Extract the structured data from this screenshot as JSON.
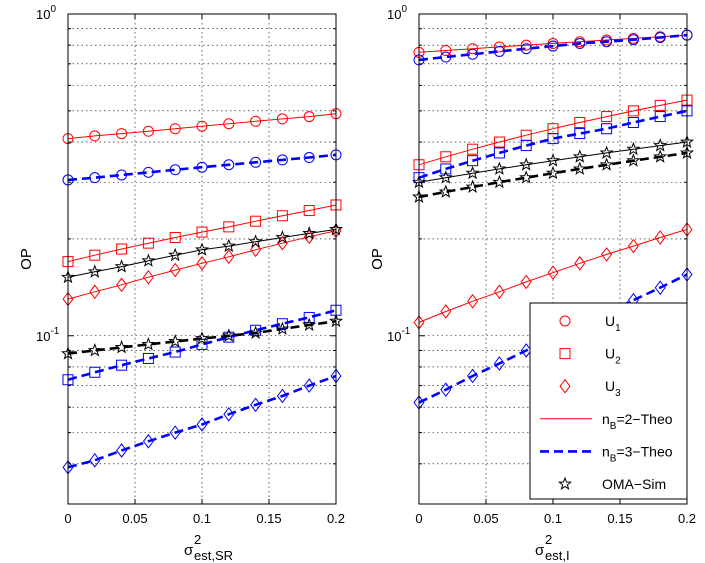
{
  "chart_data": [
    {
      "type": "line",
      "ylabel": "OP",
      "xlabel": {
        "base": "σ",
        "sup": "2",
        "sub": "est,SR"
      },
      "xlim": [
        0,
        0.2
      ],
      "ylim": [
        0.03,
        1
      ],
      "yscale": "log",
      "grid": true,
      "xticks": [
        0,
        0.05,
        0.1,
        0.15,
        0.2
      ],
      "xtick_labels": [
        "0",
        "0.05",
        "0.1",
        "0.15",
        "0.2"
      ],
      "ytick_labels": [
        {
          "value": 1,
          "base": "10",
          "exp": "0"
        },
        {
          "value": 0.1,
          "base": "10",
          "exp": "-1"
        }
      ],
      "x": [
        0,
        0.02,
        0.04,
        0.06,
        0.08,
        0.1,
        0.12,
        0.14,
        0.16,
        0.18,
        0.2
      ],
      "series": [
        {
          "user": "U1",
          "scheme": "nB=2",
          "color": "#ff0000",
          "dash": "solid",
          "marker": "circle",
          "values": [
            0.41,
            0.418,
            0.425,
            0.432,
            0.44,
            0.448,
            0.456,
            0.464,
            0.472,
            0.48,
            0.49
          ]
        },
        {
          "user": "U1",
          "scheme": "nB=3",
          "color": "#0000ff",
          "dash": "dash",
          "marker": "circle",
          "values": [
            0.305,
            0.31,
            0.316,
            0.322,
            0.328,
            0.334,
            0.34,
            0.346,
            0.352,
            0.358,
            0.365
          ]
        },
        {
          "user": "U2",
          "scheme": "nB=2",
          "color": "#ff0000",
          "dash": "solid",
          "marker": "square",
          "values": [
            0.17,
            0.178,
            0.186,
            0.194,
            0.202,
            0.21,
            0.218,
            0.227,
            0.236,
            0.245,
            0.255
          ]
        },
        {
          "user": "U2",
          "scheme": "nB=3",
          "color": "#0000ff",
          "dash": "dash",
          "marker": "square",
          "values": [
            0.073,
            0.077,
            0.081,
            0.085,
            0.089,
            0.094,
            0.099,
            0.104,
            0.109,
            0.114,
            0.12
          ]
        },
        {
          "user": "U3",
          "scheme": "nB=2",
          "color": "#ff0000",
          "dash": "solid",
          "marker": "diamond",
          "values": [
            0.13,
            0.137,
            0.144,
            0.152,
            0.16,
            0.168,
            0.176,
            0.185,
            0.194,
            0.203,
            0.212
          ]
        },
        {
          "user": "U3",
          "scheme": "nB=3",
          "color": "#0000ff",
          "dash": "dash",
          "marker": "diamond",
          "values": [
            0.039,
            0.041,
            0.044,
            0.047,
            0.05,
            0.053,
            0.057,
            0.061,
            0.065,
            0.07,
            0.075
          ]
        },
        {
          "user": "OMA",
          "scheme": "OMA-Sim, U_f",
          "color": "#000000",
          "dash": "solid",
          "marker": "star",
          "values": [
            0.152,
            0.158,
            0.164,
            0.171,
            0.178,
            0.185,
            0.19,
            0.196,
            0.202,
            0.208,
            0.214
          ]
        },
        {
          "user": "OMA",
          "scheme": "OMA-Sim, U_n",
          "color": "#000000",
          "dash": "dash",
          "marker": "star",
          "values": [
            0.088,
            0.09,
            0.092,
            0.094,
            0.096,
            0.098,
            0.1,
            0.102,
            0.105,
            0.108,
            0.111
          ]
        }
      ]
    },
    {
      "type": "line",
      "ylabel": "OP",
      "xlabel": {
        "base": "σ",
        "sup": "2",
        "sub": "est,I"
      },
      "xlim": [
        0,
        0.2
      ],
      "ylim": [
        0.03,
        1
      ],
      "yscale": "log",
      "grid": true,
      "xticks": [
        0,
        0.05,
        0.1,
        0.15,
        0.2
      ],
      "xtick_labels": [
        "0",
        "0.05",
        "0.1",
        "0.15",
        "0.2"
      ],
      "ytick_labels": [
        {
          "value": 1,
          "base": "10",
          "exp": "0"
        },
        {
          "value": 0.1,
          "base": "10",
          "exp": "-1"
        }
      ],
      "x": [
        0,
        0.02,
        0.04,
        0.06,
        0.08,
        0.1,
        0.12,
        0.14,
        0.16,
        0.18,
        0.2
      ],
      "series": [
        {
          "user": "U1",
          "scheme": "nB=2",
          "color": "#ff0000",
          "dash": "solid",
          "marker": "circle",
          "values": [
            0.76,
            0.77,
            0.78,
            0.79,
            0.8,
            0.81,
            0.82,
            0.83,
            0.84,
            0.85,
            0.86
          ]
        },
        {
          "user": "U1",
          "scheme": "nB=3",
          "color": "#0000ff",
          "dash": "dash",
          "marker": "circle",
          "values": [
            0.72,
            0.735,
            0.75,
            0.765,
            0.78,
            0.795,
            0.81,
            0.82,
            0.832,
            0.845,
            0.86
          ]
        },
        {
          "user": "U2",
          "scheme": "nB=2",
          "color": "#ff0000",
          "dash": "solid",
          "marker": "square",
          "values": [
            0.34,
            0.36,
            0.38,
            0.4,
            0.42,
            0.44,
            0.46,
            0.48,
            0.5,
            0.52,
            0.54
          ]
        },
        {
          "user": "U2",
          "scheme": "nB=3",
          "color": "#0000ff",
          "dash": "dash",
          "marker": "square",
          "values": [
            0.31,
            0.33,
            0.35,
            0.37,
            0.39,
            0.41,
            0.425,
            0.44,
            0.46,
            0.48,
            0.5
          ]
        },
        {
          "user": "U3",
          "scheme": "nB=2",
          "color": "#ff0000",
          "dash": "solid",
          "marker": "diamond",
          "values": [
            0.11,
            0.119,
            0.128,
            0.137,
            0.147,
            0.157,
            0.168,
            0.179,
            0.19,
            0.202,
            0.214
          ]
        },
        {
          "user": "U3",
          "scheme": "nB=3",
          "color": "#0000ff",
          "dash": "dash",
          "marker": "diamond",
          "values": [
            0.062,
            0.068,
            0.075,
            0.082,
            0.09,
            0.099,
            0.108,
            0.118,
            0.129,
            0.141,
            0.155
          ]
        },
        {
          "user": "OMA",
          "scheme": "OMA-Sim, U_f",
          "color": "#000000",
          "dash": "solid",
          "marker": "star",
          "values": [
            0.3,
            0.31,
            0.32,
            0.33,
            0.34,
            0.35,
            0.36,
            0.37,
            0.38,
            0.39,
            0.4
          ]
        },
        {
          "user": "OMA",
          "scheme": "OMA-Sim, U_n",
          "color": "#000000",
          "dash": "dash",
          "marker": "star",
          "values": [
            0.27,
            0.28,
            0.29,
            0.3,
            0.31,
            0.32,
            0.33,
            0.34,
            0.35,
            0.36,
            0.37
          ]
        }
      ]
    }
  ],
  "legend": {
    "placement": "bottom-right of right panel",
    "entries": [
      {
        "label_base": "U",
        "label_sub": "1",
        "label_after": "",
        "marker": "circle",
        "color": "#ff0000",
        "dash": "none"
      },
      {
        "label_base": "U",
        "label_sub": "2",
        "label_after": "",
        "marker": "square",
        "color": "#ff0000",
        "dash": "none"
      },
      {
        "label_base": "U",
        "label_sub": "3",
        "label_after": "",
        "marker": "diamond",
        "color": "#ff0000",
        "dash": "none"
      },
      {
        "label_base": "n",
        "label_sub": "B",
        "label_after": "=2−Theo",
        "marker": "none",
        "color": "#ff0000",
        "dash": "solid"
      },
      {
        "label_base": "n",
        "label_sub": "B",
        "label_after": "=3−Theo",
        "marker": "none",
        "color": "#0000ff",
        "dash": "dash"
      },
      {
        "label_base": "OMA−Sim",
        "label_sub": "",
        "label_after": "",
        "marker": "star",
        "color": "#000000",
        "dash": "none"
      }
    ]
  }
}
